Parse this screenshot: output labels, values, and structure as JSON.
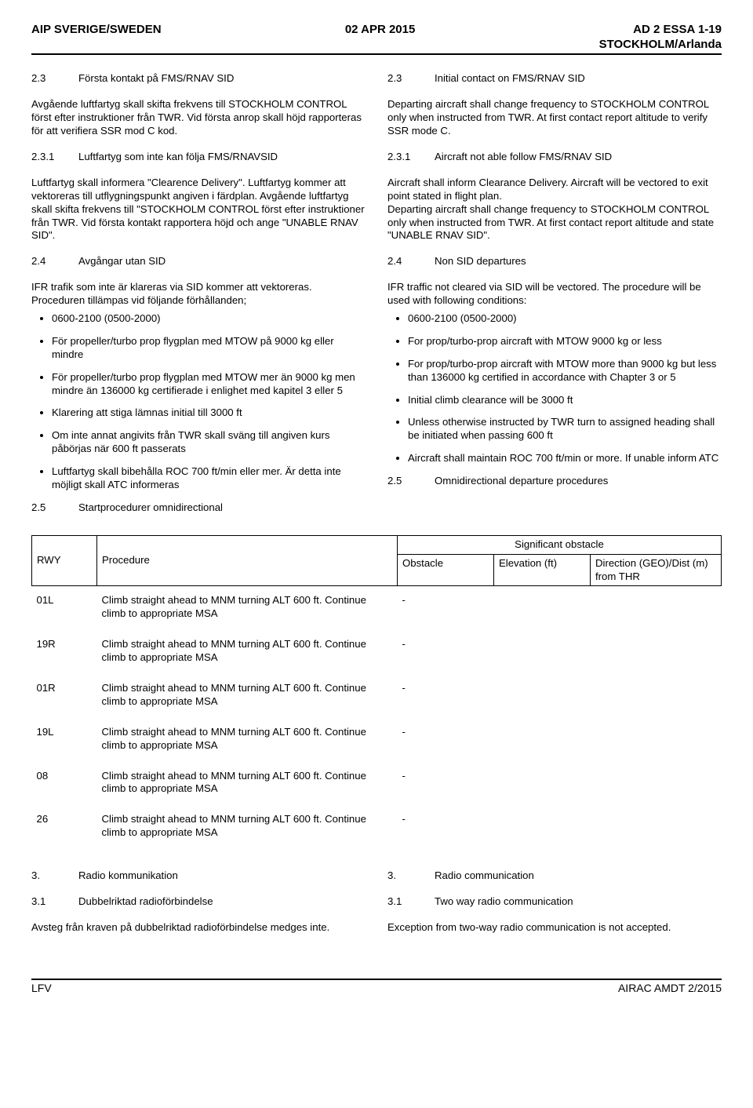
{
  "header": {
    "left": "AIP SVERIGE/SWEDEN",
    "center": "02 APR 2015",
    "right1": "AD 2 ESSA 1-19",
    "right2": "STOCKHOLM/Arlanda"
  },
  "left": {
    "s23_num": "2.3",
    "s23_title": "Första kontakt på FMS/RNAV SID",
    "s23_body": "Avgående luftfartyg skall skifta frekvens till STOCKHOLM CONTROL först efter instruktioner från TWR. Vid första anrop skall höjd rapporteras för att verifiera SSR mod C kod.",
    "s231_num": "2.3.1",
    "s231_title": "Luftfartyg som inte kan följa FMS/RNAVSID",
    "s231_body": "Luftfartyg skall informera \"Clearence Delivery\". Luftfartyg kommer att vektoreras till utflygningspunkt angiven i färdplan. Avgående luftfartyg skall skifta frekvens till \"STOCKHOLM CONTROL först efter instruktioner från TWR. Vid första kontakt rapportera höjd och ange \"UNABLE RNAV SID\".",
    "s24_num": "2.4",
    "s24_title": "Avgångar utan SID",
    "s24_body": "IFR trafik som inte är klareras via SID kommer att vektoreras. Proceduren tillämpas vid följande förhållanden;",
    "b1": "0600-2100 (0500-2000)",
    "b2": "För propeller/turbo prop flygplan med MTOW på 9000 kg eller mindre",
    "b3": "För propeller/turbo prop flygplan med MTOW mer än 9000 kg men mindre än 136000 kg certifierade i enlighet med kapitel 3 eller 5",
    "b4": "Klarering att stiga lämnas initial till 3000 ft",
    "b5": "Om inte annat angivits från TWR skall sväng till angiven kurs påbörjas när 600 ft passerats",
    "b6": "Luftfartyg skall bibehålla ROC 700 ft/min eller mer. Är detta inte möjligt skall ATC informeras",
    "s25_num": "2.5",
    "s25_title": "Startprocedurer omnidirectional"
  },
  "right": {
    "s23_num": "2.3",
    "s23_title": "Initial contact on FMS/RNAV SID",
    "s23_body": "Departing aircraft shall change frequency to STOCKHOLM CONTROL only when instructed from TWR. At first contact report altitude to verify SSR mode C.",
    "s231_num": "2.3.1",
    "s231_title": "Aircraft not able follow FMS/RNAV SID",
    "s231_body": "Aircraft shall inform Clearance Delivery. Aircraft will be vectored to exit point stated in flight plan.\nDeparting aircraft shall change frequency to STOCKHOLM CONTROL only when instructed from TWR. At first contact report altitude and state \"UNABLE RNAV SID\".",
    "s24_num": "2.4",
    "s24_title": "Non SID departures",
    "s24_body": "IFR traffic not cleared via SID will be vectored. The procedure will be used with following conditions:",
    "b1": "0600-2100 (0500-2000)",
    "b2": "For prop/turbo-prop aircraft with MTOW 9000 kg or less",
    "b3": "For prop/turbo-prop aircraft with MTOW more than 9000 kg but less than 136000 kg certified in accordance with Chapter 3 or 5",
    "b4": "Initial climb clearance will be 3000 ft",
    "b5": "Unless otherwise instructed by TWR turn to assigned heading shall be initiated when passing 600 ft",
    "b6": "Aircraft shall maintain ROC 700 ft/min or more. If unable inform ATC",
    "s25_num": "2.5",
    "s25_title": "Omnidirectional departure procedures"
  },
  "table": {
    "h_rwy": "RWY",
    "h_proc": "Procedure",
    "h_sig": "Significant obstacle",
    "h_obs": "Obstacle",
    "h_elev": "Elevation (ft)",
    "h_dir": "Direction (GEO)/Dist (m) from THR",
    "rows": [
      {
        "rwy": "01L",
        "proc": "Climb straight ahead to MNM turning ALT 600 ft. Continue climb to appropriate MSA",
        "obs": "-"
      },
      {
        "rwy": "19R",
        "proc": "Climb straight ahead to MNM turning ALT 600 ft. Continue climb to appropriate MSA",
        "obs": "-"
      },
      {
        "rwy": "01R",
        "proc": "Climb straight ahead to MNM turning ALT 600 ft. Continue climb to appropriate MSA",
        "obs": "-"
      },
      {
        "rwy": "19L",
        "proc": "Climb straight ahead to MNM turning ALT 600 ft. Continue climb to appropriate MSA",
        "obs": "-"
      },
      {
        "rwy": "08",
        "proc": "Climb straight ahead to MNM turning ALT 600 ft. Continue climb to appropriate MSA",
        "obs": "-"
      },
      {
        "rwy": "26",
        "proc": "Climb straight ahead to MNM turning ALT 600 ft. Continue climb to appropriate MSA",
        "obs": "-"
      }
    ]
  },
  "lower_left": {
    "s3_num": "3.",
    "s3_title": "Radio kommunikation",
    "s31_num": "3.1",
    "s31_title": "Dubbelriktad radioförbindelse",
    "s31_body": "Avsteg från kraven på dubbelriktad radioförbindelse medges inte."
  },
  "lower_right": {
    "s3_num": "3.",
    "s3_title": "Radio communication",
    "s31_num": "3.1",
    "s31_title": "Two way radio communication",
    "s31_body": "Exception from two-way radio communication is not accepted."
  },
  "footer": {
    "left": "LFV",
    "right": "AIRAC AMDT 2/2015"
  }
}
